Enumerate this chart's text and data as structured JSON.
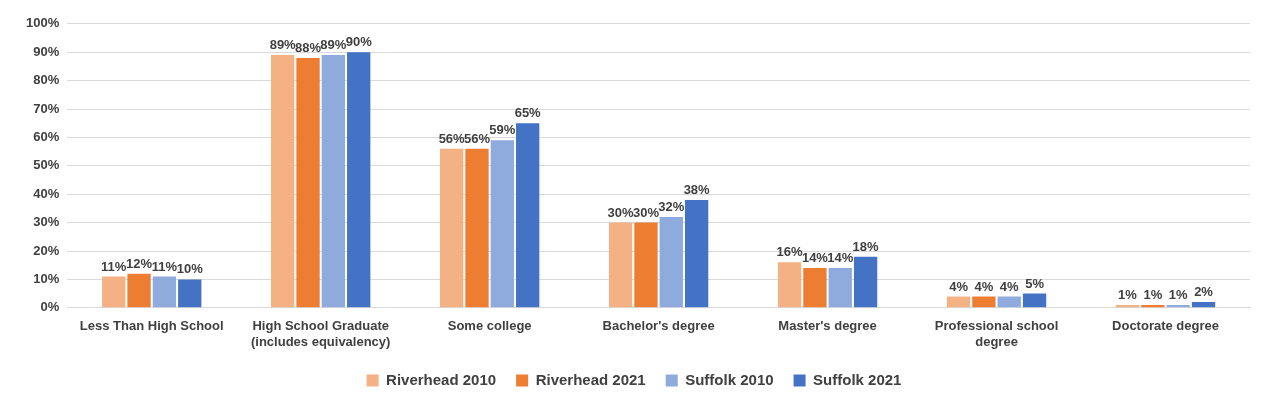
{
  "chart_data": {
    "type": "bar",
    "categories": [
      "Less Than High School",
      "High School Graduate (includes equivalency)",
      "Some college",
      "Bachelor's degree",
      "Master's degree",
      "Professional school degree",
      "Doctorate degree"
    ],
    "series": [
      {
        "name": "Riverhead 2010",
        "color": "#f4b183",
        "values": [
          11,
          89,
          56,
          30,
          16,
          4,
          1
        ],
        "value_labels": [
          "11%",
          "89%",
          "56%",
          "30%",
          "16%",
          "4%",
          "1%"
        ]
      },
      {
        "name": "Riverhead 2021",
        "color": "#ed7d31",
        "values": [
          12,
          88,
          56,
          30,
          14,
          4,
          1
        ],
        "value_labels": [
          "12%",
          "88%",
          "56%",
          "30%",
          "14%",
          "4%",
          "1%"
        ]
      },
      {
        "name": "Suffolk 2010",
        "color": "#8faadc",
        "values": [
          11,
          89,
          59,
          32,
          14,
          4,
          1
        ],
        "value_labels": [
          "11%",
          "89%",
          "59%",
          "32%",
          "14%",
          "4%",
          "1%"
        ]
      },
      {
        "name": "Suffolk 2021",
        "color": "#4472c4",
        "values": [
          10,
          90,
          65,
          38,
          18,
          5,
          2
        ],
        "value_labels": [
          "10%",
          "90%",
          "65%",
          "38%",
          "18%",
          "5%",
          "2%"
        ]
      }
    ],
    "ylim": [
      0,
      100
    ],
    "yticks": [
      {
        "value": 0,
        "label": "0%"
      },
      {
        "value": 10,
        "label": "10%"
      },
      {
        "value": 20,
        "label": "20%"
      },
      {
        "value": 30,
        "label": "30%"
      },
      {
        "value": 40,
        "label": "40%"
      },
      {
        "value": 50,
        "label": "50%"
      },
      {
        "value": 60,
        "label": "60%"
      },
      {
        "value": 70,
        "label": "70%"
      },
      {
        "value": 80,
        "label": "80%"
      },
      {
        "value": 90,
        "label": "90%"
      },
      {
        "value": 100,
        "label": "100%"
      }
    ],
    "grid": "y",
    "legend": "bottom"
  }
}
